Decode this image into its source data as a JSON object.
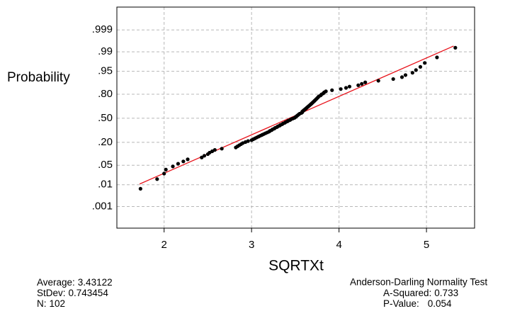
{
  "chart_data": {
    "type": "scatter",
    "yscale": "normal-probability",
    "grid": true,
    "x_label": "SQRTXt",
    "y_label": "Probability",
    "xlim": [
      1.46,
      5.55
    ],
    "xticks": [
      2,
      3,
      4,
      5
    ],
    "ylim": [
      6e-05,
      0.99995
    ],
    "yticks": [
      {
        "value": 0.001,
        "label": ".001"
      },
      {
        "value": 0.01,
        "label": ".01"
      },
      {
        "value": 0.05,
        "label": ".05"
      },
      {
        "value": 0.2,
        "label": ".20"
      },
      {
        "value": 0.5,
        "label": ".50"
      },
      {
        "value": 0.8,
        "label": ".80"
      },
      {
        "value": 0.95,
        "label": ".95"
      },
      {
        "value": 0.99,
        "label": ".99"
      },
      {
        "value": 0.999,
        "label": ".999"
      }
    ],
    "color": "#000000",
    "x": [
      1.73,
      1.92,
      2.0,
      2.02,
      2.1,
      2.16,
      2.22,
      2.27,
      2.43,
      2.46,
      2.5,
      2.52,
      2.55,
      2.58,
      2.66,
      2.82,
      2.84,
      2.86,
      2.88,
      2.9,
      2.93,
      2.96,
      3.0,
      3.02,
      3.04,
      3.06,
      3.08,
      3.1,
      3.12,
      3.14,
      3.16,
      3.18,
      3.2,
      3.21,
      3.23,
      3.24,
      3.26,
      3.27,
      3.29,
      3.3,
      3.32,
      3.33,
      3.35,
      3.36,
      3.38,
      3.39,
      3.41,
      3.42,
      3.44,
      3.45,
      3.47,
      3.49,
      3.5,
      3.51,
      3.52,
      3.53,
      3.54,
      3.55,
      3.57,
      3.58,
      3.58,
      3.59,
      3.6,
      3.61,
      3.62,
      3.63,
      3.64,
      3.65,
      3.66,
      3.67,
      3.68,
      3.69,
      3.7,
      3.71,
      3.72,
      3.73,
      3.74,
      3.75,
      3.76,
      3.77,
      3.79,
      3.8,
      3.82,
      3.83,
      3.85,
      3.92,
      4.02,
      4.08,
      4.12,
      4.22,
      4.26,
      4.3,
      4.45,
      4.62,
      4.72,
      4.76,
      4.84,
      4.88,
      4.93,
      4.98,
      5.12,
      5.33
    ],
    "values": [
      0.0068,
      0.0166,
      0.0264,
      0.0361,
      0.0459,
      0.0557,
      0.0654,
      0.0752,
      0.085,
      0.0947,
      0.1045,
      0.1143,
      0.124,
      0.1338,
      0.1436,
      0.1533,
      0.1631,
      0.1729,
      0.1826,
      0.1924,
      0.2021,
      0.2119,
      0.2217,
      0.2314,
      0.2412,
      0.251,
      0.2607,
      0.2705,
      0.2803,
      0.29,
      0.2998,
      0.3096,
      0.3193,
      0.3291,
      0.3389,
      0.3486,
      0.3584,
      0.3682,
      0.3779,
      0.3877,
      0.3975,
      0.4072,
      0.417,
      0.4268,
      0.4365,
      0.4463,
      0.4561,
      0.4658,
      0.4756,
      0.4854,
      0.4951,
      0.5049,
      0.5146,
      0.5244,
      0.5342,
      0.5439,
      0.5537,
      0.5635,
      0.5732,
      0.583,
      0.5928,
      0.6025,
      0.6123,
      0.6221,
      0.6318,
      0.6416,
      0.6514,
      0.6611,
      0.6709,
      0.6807,
      0.6904,
      0.7002,
      0.71,
      0.7197,
      0.7295,
      0.7393,
      0.749,
      0.7588,
      0.7686,
      0.7783,
      0.7881,
      0.7979,
      0.8076,
      0.8174,
      0.8271,
      0.8369,
      0.8467,
      0.8564,
      0.8662,
      0.876,
      0.8857,
      0.8955,
      0.9053,
      0.915,
      0.9248,
      0.9346,
      0.9443,
      0.9541,
      0.9639,
      0.9736,
      0.9834,
      0.9932
    ],
    "fit_line": {
      "color": "#e8141c",
      "x": [
        1.72,
        5.31
      ]
    },
    "stats": [
      {
        "label": "Average:",
        "value": 3.43122
      },
      {
        "label": "StDev:",
        "value": 0.743454
      },
      {
        "label": "N:",
        "value": 102
      }
    ],
    "test": {
      "title": "Anderson-Darling Normality Test",
      "stats": [
        {
          "label": "A-Squared:",
          "value": 0.733
        },
        {
          "label": "P-Value:",
          "value": 0.054
        }
      ]
    }
  }
}
